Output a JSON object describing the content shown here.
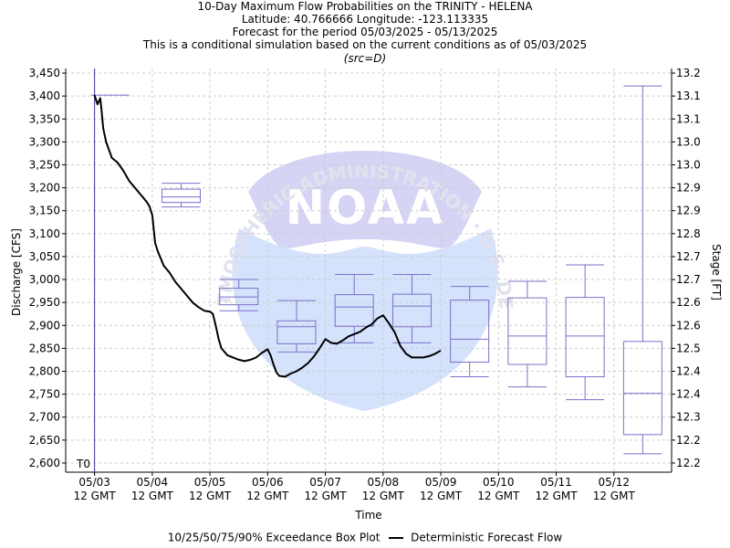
{
  "header": {
    "line1": "10-Day Maximum Flow Probabilities on the TRINITY - HELENA",
    "line2": "Latitude: 40.766666 Longitude: -123.113335",
    "line3": "Forecast for the period 05/03/2025 - 05/13/2025",
    "line4": "This is a conditional simulation based on the current conditions as of 05/03/2025",
    "line5": "(src=D)"
  },
  "watermark": {
    "logo_text": "NOAA",
    "ring_text": "NATIONAL OCEANIC AND ATMOSPHERIC ADMINISTRATION · U.S. DEPARTMENT OF COMMERCE"
  },
  "t0_label": "T0",
  "legend": {
    "box_label": "10/25/50/75/90% Exceedance Box Plot",
    "line_label": "Deterministic Forecast Flow"
  },
  "colors": {
    "box": "#7b6fc9",
    "flow_line": "#000000",
    "grid": "#cccccc",
    "watermark_top": "#d6d4f5",
    "watermark_bottom": "#d4e2fb",
    "watermark_text": "#e2e2ee",
    "t0_line": "#3a3a9a"
  },
  "chart_data": {
    "type": "box",
    "xlabel": "Time",
    "ylabel": "Discharge [CFS]",
    "y2label": "Stage [FT]",
    "ylim": [
      2580,
      3460
    ],
    "y_ticks": [
      2600,
      2650,
      2700,
      2750,
      2800,
      2850,
      2900,
      2950,
      3000,
      3050,
      3100,
      3150,
      3200,
      3250,
      3300,
      3350,
      3400,
      3450
    ],
    "y_tick_labels": [
      "2,600",
      "2,650",
      "2,700",
      "2,750",
      "2,800",
      "2,850",
      "2,900",
      "2,950",
      "3,000",
      "3,050",
      "3,100",
      "3,150",
      "3,200",
      "3,250",
      "3,300",
      "3,350",
      "3,400",
      "3,450"
    ],
    "y2_tick_labels": [
      "12.2",
      "12.2",
      "12.3",
      "12.4",
      "12.4",
      "12.5",
      "12.6",
      "12.6",
      "12.7",
      "12.7",
      "12.8",
      "12.9",
      "12.9",
      "13.0",
      "13.0",
      "13.1",
      "13.1",
      "13.2"
    ],
    "xlim": [
      -0.5,
      10.0
    ],
    "x_ticks": [
      0,
      1,
      2,
      3,
      4,
      5,
      6,
      7,
      8,
      9
    ],
    "x_tick_labels": [
      [
        "05/03",
        "12 GMT"
      ],
      [
        "05/04",
        "12 GMT"
      ],
      [
        "05/05",
        "12 GMT"
      ],
      [
        "05/06",
        "12 GMT"
      ],
      [
        "05/07",
        "12 GMT"
      ],
      [
        "05/08",
        "12 GMT"
      ],
      [
        "05/09",
        "12 GMT"
      ],
      [
        "05/10",
        "12 GMT"
      ],
      [
        "05/11",
        "12 GMT"
      ],
      [
        "05/12",
        "12 GMT"
      ]
    ],
    "t0_x": 0.0,
    "boxes": [
      {
        "x": 0.27,
        "p10": 3402,
        "p25": 3402,
        "p50": 3402,
        "p75": 3402,
        "p90": 3402
      },
      {
        "x": 1.5,
        "p10": 3158,
        "p25": 3168,
        "p50": 3180,
        "p75": 3197,
        "p90": 3210
      },
      {
        "x": 2.5,
        "p10": 2932,
        "p25": 2945,
        "p50": 2962,
        "p75": 2981,
        "p90": 3000
      },
      {
        "x": 3.5,
        "p10": 2842,
        "p25": 2860,
        "p50": 2897,
        "p75": 2910,
        "p90": 2954
      },
      {
        "x": 4.5,
        "p10": 2862,
        "p25": 2898,
        "p50": 2940,
        "p75": 2967,
        "p90": 3011
      },
      {
        "x": 5.5,
        "p10": 2862,
        "p25": 2897,
        "p50": 2942,
        "p75": 2968,
        "p90": 3011
      },
      {
        "x": 6.5,
        "p10": 2788,
        "p25": 2820,
        "p50": 2870,
        "p75": 2955,
        "p90": 2985
      },
      {
        "x": 7.5,
        "p10": 2766,
        "p25": 2815,
        "p50": 2877,
        "p75": 2960,
        "p90": 2996
      },
      {
        "x": 8.5,
        "p10": 2738,
        "p25": 2788,
        "p50": 2877,
        "p75": 2961,
        "p90": 3032
      },
      {
        "x": 9.5,
        "p10": 2620,
        "p25": 2662,
        "p50": 2752,
        "p75": 2865,
        "p90": 3422
      }
    ],
    "flow_series": {
      "x": [
        0.0,
        0.05,
        0.1,
        0.12,
        0.15,
        0.2,
        0.3,
        0.4,
        0.5,
        0.6,
        0.7,
        0.8,
        0.9,
        0.95,
        1.0,
        1.05,
        1.1,
        1.2,
        1.3,
        1.4,
        1.5,
        1.6,
        1.7,
        1.8,
        1.9,
        2.0,
        2.05,
        2.1,
        2.15,
        2.2,
        2.3,
        2.4,
        2.5,
        2.6,
        2.7,
        2.8,
        2.9,
        3.0,
        3.05,
        3.1,
        3.15,
        3.2,
        3.3,
        3.4,
        3.5,
        3.6,
        3.7,
        3.8,
        3.9,
        4.0,
        4.1,
        4.2,
        4.3,
        4.4,
        4.5,
        4.6,
        4.7,
        4.8,
        4.9,
        5.0,
        5.1,
        5.2,
        5.3,
        5.4,
        5.5,
        5.6,
        5.7,
        5.8,
        5.9,
        6.0
      ],
      "y": [
        3402,
        3382,
        3395,
        3370,
        3330,
        3300,
        3265,
        3255,
        3237,
        3215,
        3200,
        3185,
        3170,
        3160,
        3140,
        3080,
        3060,
        3030,
        3015,
        2995,
        2980,
        2965,
        2950,
        2940,
        2932,
        2930,
        2925,
        2900,
        2870,
        2850,
        2835,
        2830,
        2825,
        2822,
        2825,
        2830,
        2840,
        2848,
        2835,
        2815,
        2798,
        2790,
        2788,
        2795,
        2800,
        2808,
        2818,
        2832,
        2850,
        2870,
        2862,
        2860,
        2867,
        2876,
        2881,
        2886,
        2895,
        2902,
        2915,
        2922,
        2905,
        2885,
        2855,
        2838,
        2830,
        2830,
        2830,
        2833,
        2838,
        2845
      ]
    }
  }
}
